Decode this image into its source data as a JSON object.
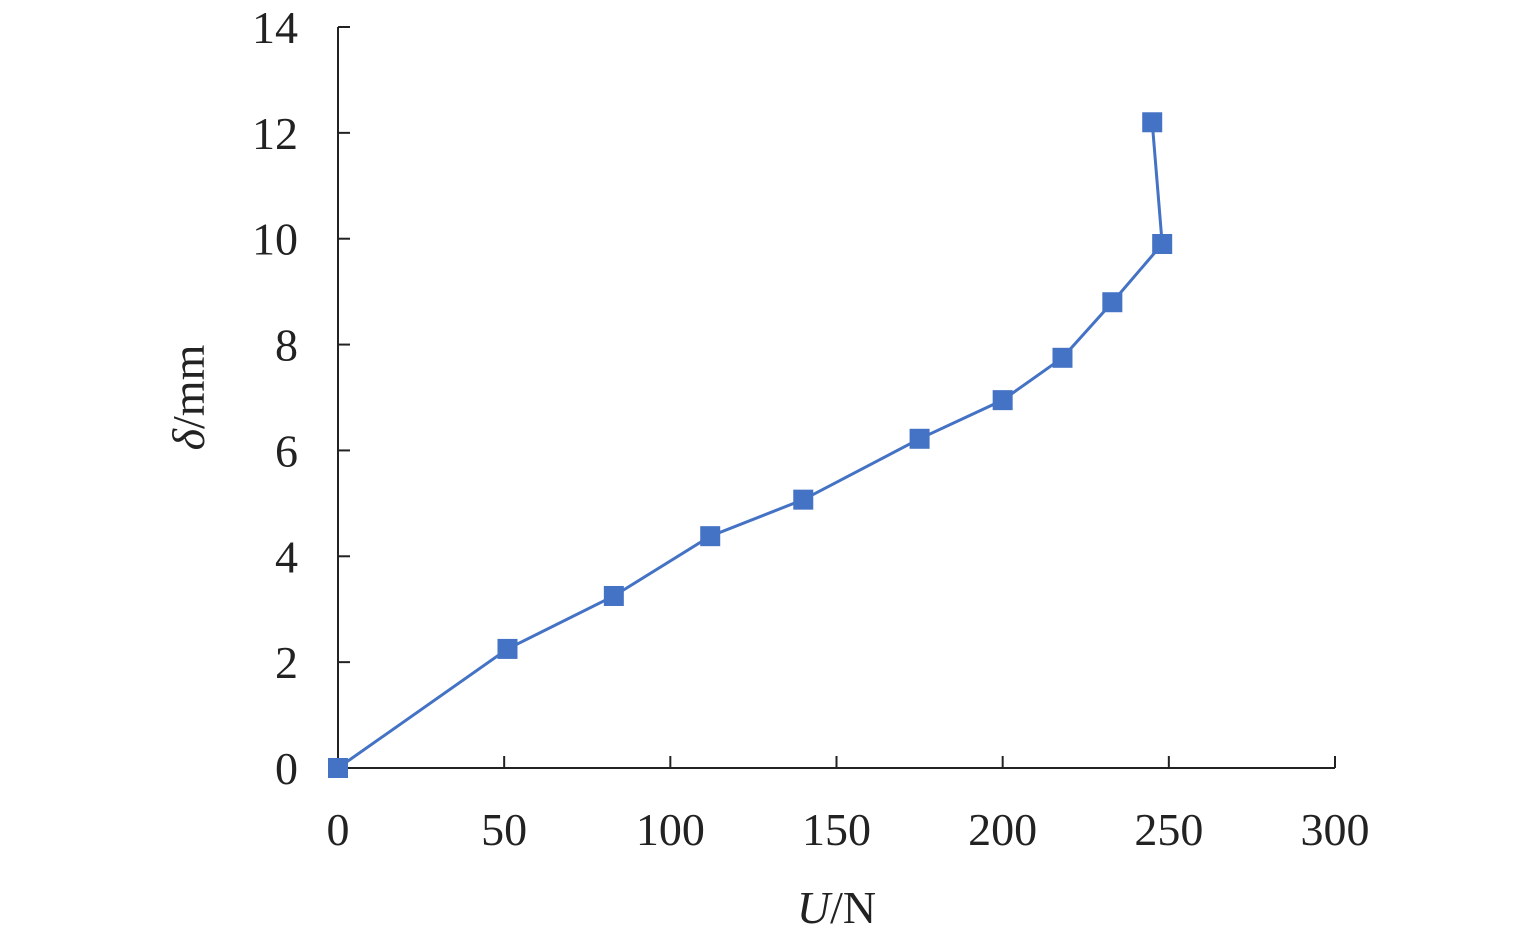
{
  "chart_data": {
    "type": "line",
    "title": "",
    "xlabel": {
      "var": "U",
      "unit": "/N"
    },
    "ylabel": {
      "var": "δ",
      "unit": "/mm"
    },
    "xlim": [
      0,
      300
    ],
    "ylim": [
      0,
      14
    ],
    "x_ticks": [
      "0",
      "50",
      "100",
      "150",
      "200",
      "250",
      "300"
    ],
    "y_ticks": [
      "0",
      "2",
      "4",
      "6",
      "8",
      "10",
      "12",
      "14"
    ],
    "grid": false,
    "legend": "none",
    "series": [
      {
        "color": "#4472C4",
        "marker": "square",
        "x": [
          0,
          51,
          83,
          112,
          140,
          175,
          200,
          218,
          233,
          248,
          245
        ],
        "y": [
          0,
          2.25,
          3.25,
          4.38,
          5.07,
          6.22,
          6.95,
          7.75,
          8.8,
          9.9,
          12.2
        ]
      }
    ]
  }
}
